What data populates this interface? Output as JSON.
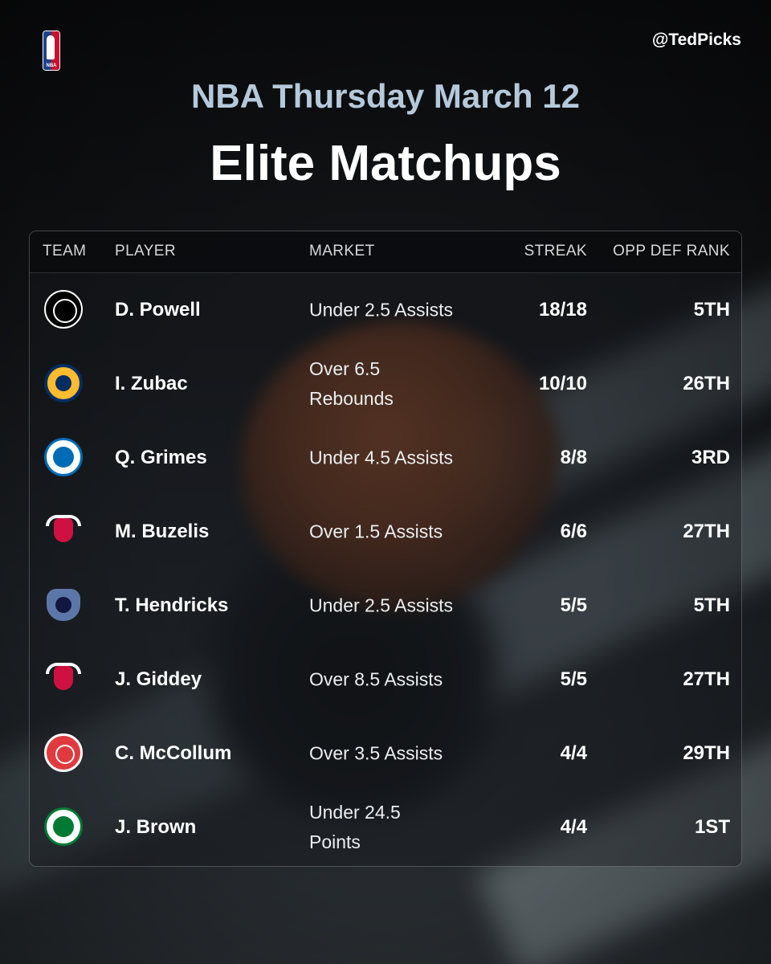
{
  "header": {
    "brand_logo": "nba-logo",
    "handle": "@TedPicks",
    "subtitle": "NBA Thursday March 12",
    "title": "Elite Matchups"
  },
  "table": {
    "columns": {
      "team": "TEAM",
      "player": "PLAYER",
      "market": "MARKET",
      "streak": "STREAK",
      "opp_def_rank": "OPP DEF RANK"
    },
    "rows": [
      {
        "team_logo": "nets-logo-icon",
        "player": "D. Powell",
        "market": "Under 2.5 Assists",
        "streak": "18/18",
        "rank": "5TH"
      },
      {
        "team_logo": "pacers-logo-icon",
        "player": "I. Zubac",
        "market": "Over 6.5 Rebounds",
        "streak": "10/10",
        "rank": "26TH"
      },
      {
        "team_logo": "76ers-logo-icon",
        "player": "Q. Grimes",
        "market": "Under 4.5 Assists",
        "streak": "8/8",
        "rank": "3RD"
      },
      {
        "team_logo": "bulls-logo-icon",
        "player": "M. Buzelis",
        "market": "Over 1.5 Assists",
        "streak": "6/6",
        "rank": "27TH"
      },
      {
        "team_logo": "grizzlies-logo-icon",
        "player": "T. Hendricks",
        "market": "Under 2.5 Assists",
        "streak": "5/5",
        "rank": "5TH"
      },
      {
        "team_logo": "bulls-logo-icon",
        "player": "J. Giddey",
        "market": "Over 8.5 Assists",
        "streak": "5/5",
        "rank": "27TH"
      },
      {
        "team_logo": "hawks-logo-icon",
        "player": "C. McCollum",
        "market": "Over 3.5 Assists",
        "streak": "4/4",
        "rank": "29TH"
      },
      {
        "team_logo": "celtics-logo-icon",
        "player": "J. Brown",
        "market": "Under 24.5 Points",
        "streak": "4/4",
        "rank": "1ST"
      }
    ]
  },
  "colors": {
    "subtitle": "#b5c9db",
    "title": "#ffffff",
    "header_bg": "#0a0b0e"
  }
}
